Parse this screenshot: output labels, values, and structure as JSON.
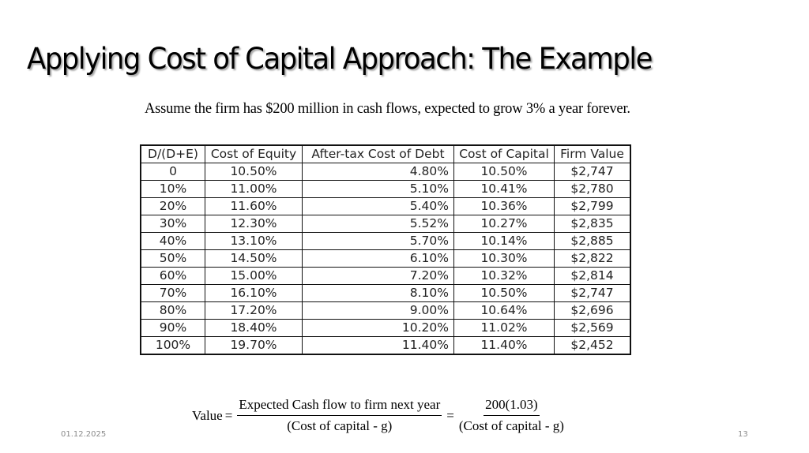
{
  "slide": {
    "title": "Applying Cost of Capital Approach: The Example",
    "subtitle": "Assume the firm has $200 million in cash flows, expected to grow 3% a year forever.",
    "footer": {
      "date": "01.12.2025",
      "page_number": "13"
    }
  },
  "table": {
    "headers": [
      "D/(D+E)",
      "Cost of Equity",
      "After-tax Cost of Debt",
      "Cost of Capital",
      "Firm Value"
    ],
    "rows": [
      [
        "0",
        "10.50%",
        "4.80%",
        "10.50%",
        "$2,747"
      ],
      [
        "10%",
        "11.00%",
        "5.10%",
        "10.41%",
        "$2,780"
      ],
      [
        "20%",
        "11.60%",
        "5.40%",
        "10.36%",
        "$2,799"
      ],
      [
        "30%",
        "12.30%",
        "5.52%",
        "10.27%",
        "$2,835"
      ],
      [
        "40%",
        "13.10%",
        "5.70%",
        "10.14%",
        "$2,885"
      ],
      [
        "50%",
        "14.50%",
        "6.10%",
        "10.30%",
        "$2,822"
      ],
      [
        "60%",
        "15.00%",
        "7.20%",
        "10.32%",
        "$2,814"
      ],
      [
        "70%",
        "16.10%",
        "8.10%",
        "10.50%",
        "$2,747"
      ],
      [
        "80%",
        "17.20%",
        "9.00%",
        "10.64%",
        "$2,696"
      ],
      [
        "90%",
        "18.40%",
        "10.20%",
        "11.02%",
        "$2,569"
      ],
      [
        "100%",
        "19.70%",
        "11.40%",
        "11.40%",
        "$2,452"
      ]
    ]
  },
  "formula": {
    "lhs": "Value",
    "equals": "=",
    "fraction1": {
      "numerator": "Expected Cash flow to firm next year",
      "denominator": "(Cost of capital  - g)"
    },
    "fraction2": {
      "numerator": "200(1.03)",
      "denominator": "(Cost of capital  - g)"
    }
  }
}
